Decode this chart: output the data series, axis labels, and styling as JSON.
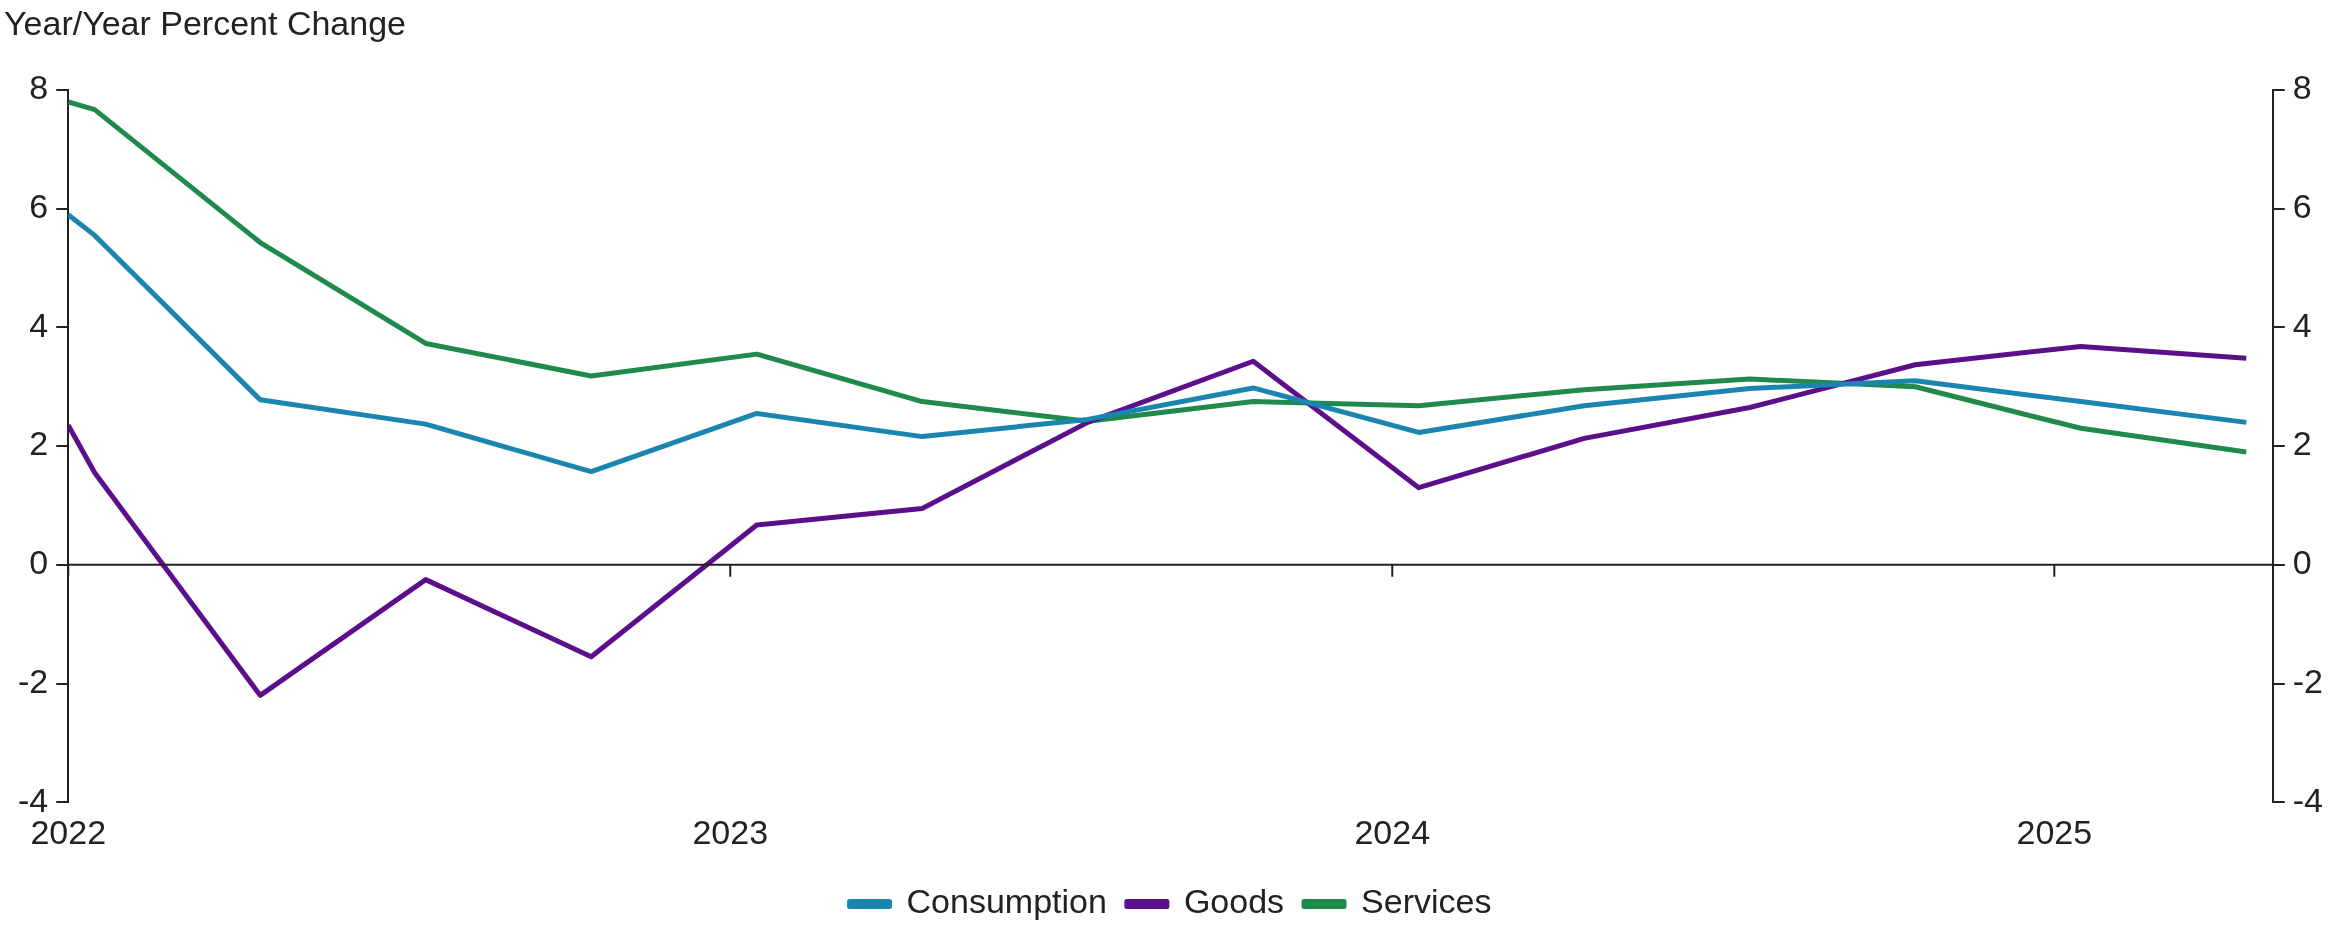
{
  "chart_data": {
    "type": "line",
    "ylabel": "Year/Year Percent Change",
    "x": [
      2022.0,
      2022.04,
      2022.29,
      2022.54,
      2022.79,
      2023.04,
      2023.29,
      2023.54,
      2023.79,
      2024.04,
      2024.29,
      2024.54,
      2024.79,
      2025.04,
      2025.29
    ],
    "series": [
      {
        "name": "Consumption",
        "color": "#1a86b0",
        "values": [
          5.9,
          5.55,
          2.78,
          2.37,
          1.57,
          2.55,
          2.16,
          2.45,
          2.98,
          2.23,
          2.68,
          2.97,
          3.1,
          2.75,
          2.4
        ]
      },
      {
        "name": "Goods",
        "color": "#5c0f8b",
        "values": [
          2.35,
          1.55,
          -2.2,
          -0.25,
          -1.55,
          0.67,
          0.95,
          2.4,
          3.43,
          1.3,
          2.13,
          2.65,
          3.37,
          3.68,
          3.48
        ]
      },
      {
        "name": "Services",
        "color": "#1f8a4c",
        "values": [
          7.8,
          7.67,
          5.43,
          3.73,
          3.18,
          3.55,
          2.75,
          2.42,
          2.75,
          2.68,
          2.95,
          3.13,
          3.0,
          2.3,
          1.9
        ]
      }
    ],
    "xlim": [
      2022,
      2025.33
    ],
    "xticks": [
      2022,
      2023,
      2024,
      2025
    ],
    "ylim": [
      -4,
      8
    ],
    "yticks": [
      -4,
      -2,
      0,
      2,
      4,
      6,
      8
    ],
    "y2lim": [
      -4,
      8
    ],
    "y2ticks": [
      -4,
      -2,
      0,
      2,
      4,
      6,
      8
    ],
    "ref_lines": [
      {
        "axis": "y",
        "value": 0
      }
    ],
    "grid": false,
    "legend": "bottom",
    "marker": "none",
    "line_style": "solid"
  }
}
